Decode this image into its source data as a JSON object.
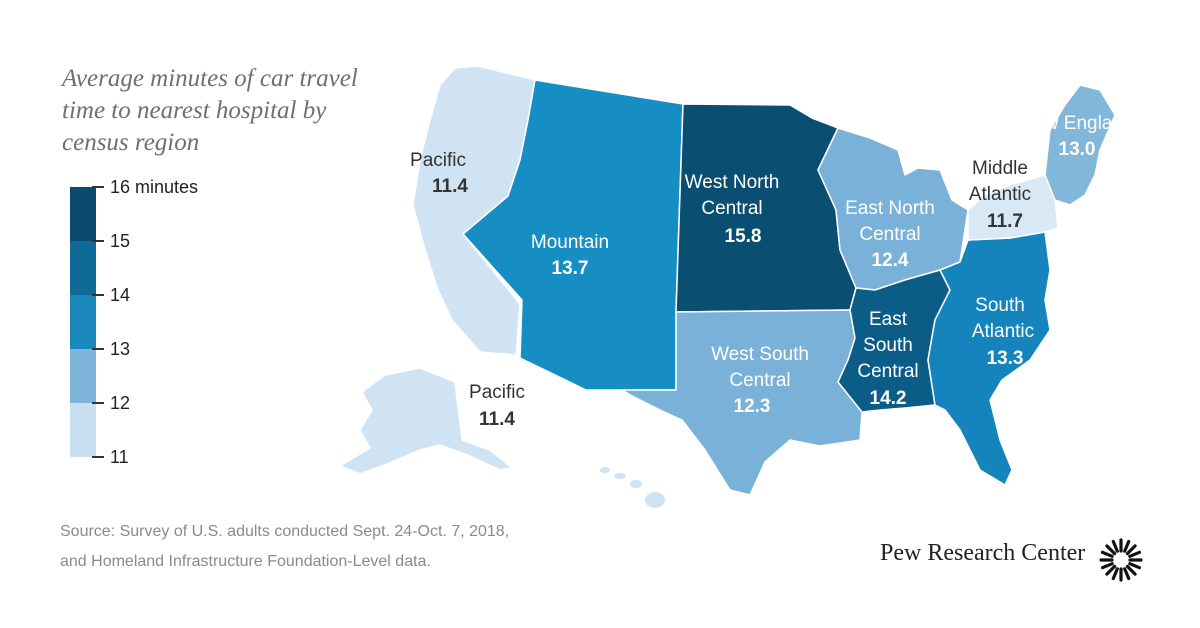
{
  "title": "Average minutes of car travel time to nearest hospital by census region",
  "legend": {
    "unit_label": "16 minutes",
    "ticks": [
      "15",
      "14",
      "13",
      "12",
      "11"
    ],
    "colors": [
      "#0a4a6e",
      "#0f6a98",
      "#1b88bc",
      "#7fb5da",
      "#c9e0f0"
    ]
  },
  "regions": [
    {
      "name": "Pacific",
      "value": "11.4",
      "color": "#cfe3f2"
    },
    {
      "name": "Mountain",
      "value": "13.7",
      "color": "#168ec4"
    },
    {
      "name": "West North Central",
      "name_lines": [
        "West North",
        "Central"
      ],
      "value": "15.8",
      "color": "#0a4e72"
    },
    {
      "name": "East North Central",
      "name_lines": [
        "East North",
        "Central"
      ],
      "value": "12.4",
      "color": "#79b1d8"
    },
    {
      "name": "West South Central",
      "name_lines": [
        "West South",
        "Central"
      ],
      "value": "12.3",
      "color": "#79b1d8"
    },
    {
      "name": "East South Central",
      "name_lines": [
        "East",
        "South",
        "Central"
      ],
      "value": "14.2",
      "color": "#0c5c88"
    },
    {
      "name": "South Atlantic",
      "name_lines": [
        "South",
        "Atlantic"
      ],
      "value": "13.3",
      "color": "#1584bc"
    },
    {
      "name": "Middle Atlantic",
      "name_lines": [
        "Middle",
        "Atlantic"
      ],
      "value": "11.7",
      "color": "#d8e8f4"
    },
    {
      "name": "New England",
      "value": "13.0",
      "color": "#82b6da"
    },
    {
      "name": "Pacific",
      "value": "11.4",
      "color": "#cfe3f2",
      "note": "Alaska"
    }
  ],
  "source": {
    "line1": "Source: Survey of U.S. adults conducted Sept. 24-Oct. 7, 2018,",
    "line2": "and Homeland Infrastructure Foundation-Level data."
  },
  "brand": "Pew Research Center"
}
